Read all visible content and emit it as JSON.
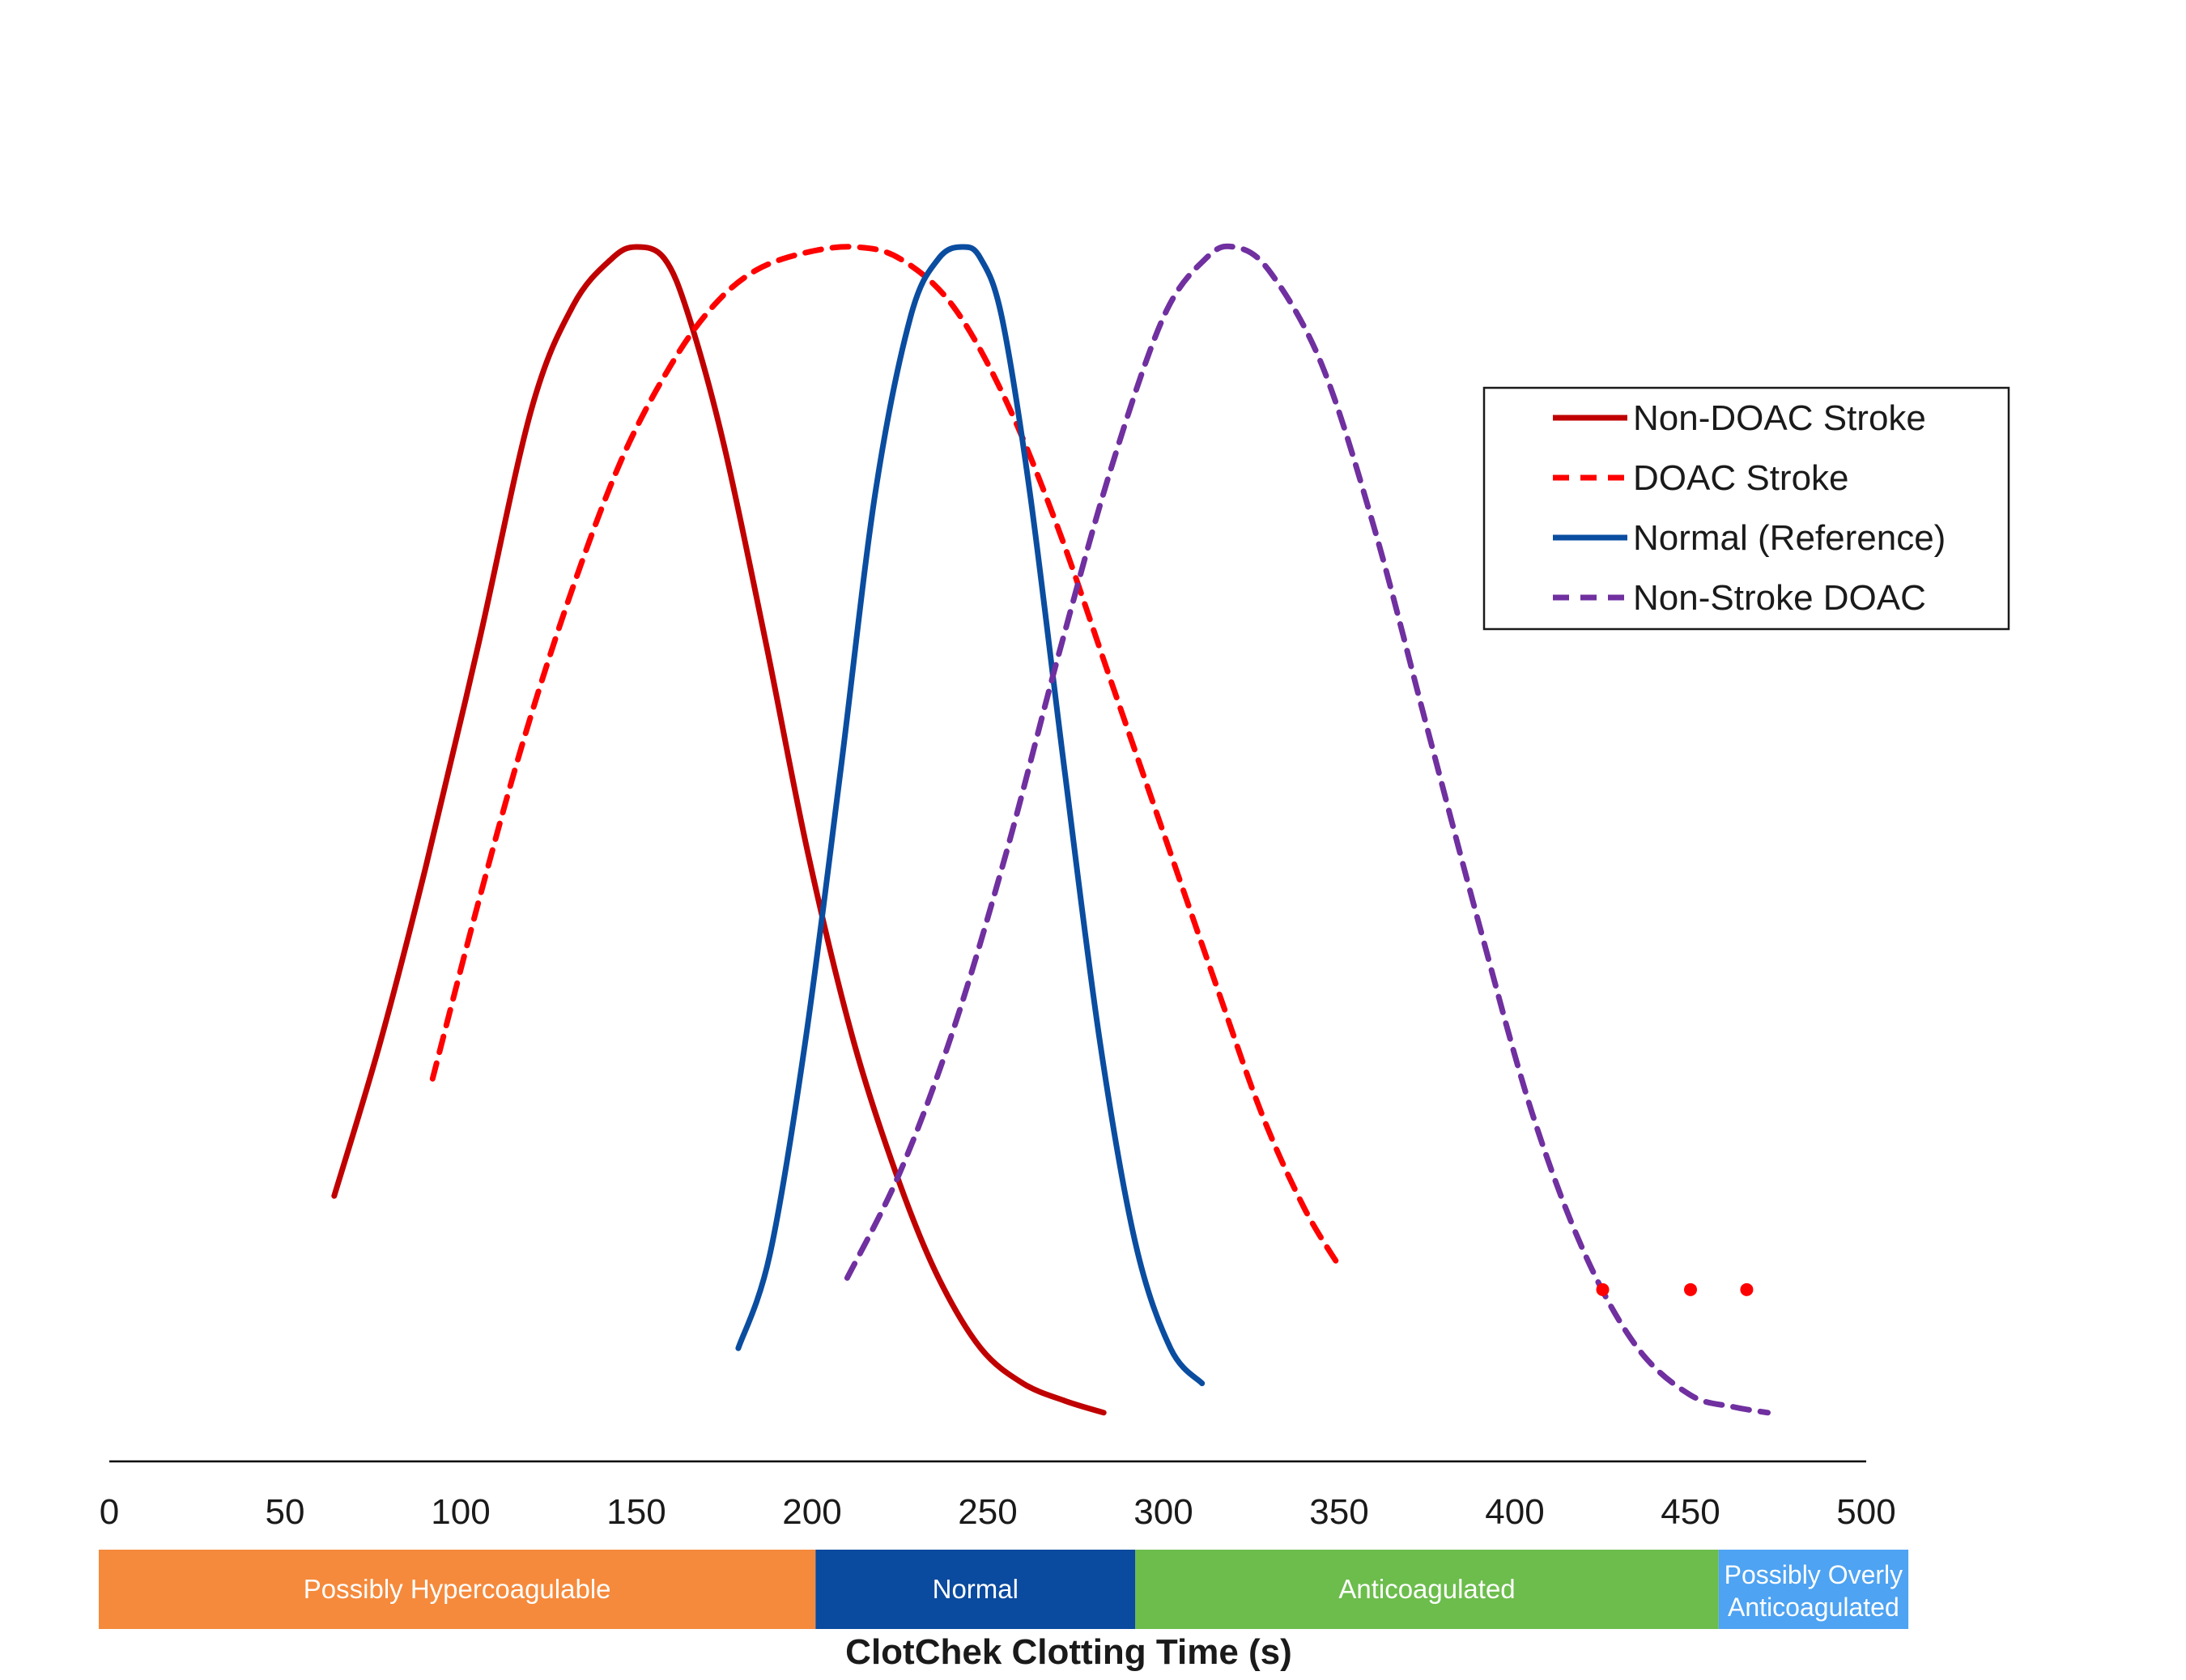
{
  "chart_data": {
    "type": "line",
    "title": "",
    "xlabel": "ClotChek Clotting Time (s)",
    "ylabel": "",
    "xlim": [
      0,
      500
    ],
    "ylim": [
      0,
      1
    ],
    "grid": false,
    "legend_position": "top-right",
    "ticks": [
      "0",
      "50",
      "100",
      "150",
      "200",
      "250",
      "300",
      "350",
      "400",
      "450",
      "500"
    ],
    "tick_values": [
      0,
      50,
      100,
      150,
      200,
      250,
      300,
      350,
      400,
      450,
      500
    ],
    "series": [
      {
        "name": "Non-DOAC Stroke",
        "color": "#c00000",
        "dash": "solid",
        "x": [
          64,
          77,
          90,
          105,
          120,
          132,
          143,
          150,
          158,
          165,
          175,
          187,
          199,
          212,
          225,
          236,
          248,
          260,
          272,
          283
        ],
        "y": [
          0.19,
          0.32,
          0.47,
          0.66,
          0.86,
          0.95,
          0.99,
          1.0,
          0.99,
          0.94,
          0.83,
          0.66,
          0.48,
          0.32,
          0.2,
          0.12,
          0.06,
          0.03,
          0.015,
          0.005
        ]
      },
      {
        "name": "DOAC Stroke",
        "color": "#ff0000",
        "dash": "dashed",
        "x": [
          92,
          105,
          118,
          132,
          146,
          160,
          172,
          184,
          198,
          212,
          225,
          240,
          255,
          270,
          285,
          300,
          315,
          328,
          340,
          350
        ],
        "y": [
          0.29,
          0.44,
          0.58,
          0.71,
          0.82,
          0.9,
          0.95,
          0.98,
          0.995,
          1.0,
          0.99,
          0.95,
          0.87,
          0.76,
          0.63,
          0.5,
          0.37,
          0.26,
          0.18,
          0.13
        ]
      },
      {
        "name": "Normal (Reference)",
        "color": "#0a4da0",
        "dash": "solid",
        "x": [
          179,
          188,
          198,
          208,
          218,
          228,
          236,
          243,
          248,
          254,
          262,
          272,
          282,
          292,
          302,
          311
        ],
        "y": [
          0.06,
          0.14,
          0.32,
          0.55,
          0.79,
          0.94,
          0.99,
          1.0,
          0.99,
          0.94,
          0.79,
          0.55,
          0.32,
          0.15,
          0.06,
          0.03
        ]
      },
      {
        "name": "Non-Stroke DOAC",
        "color": "#7030a0",
        "dash": "dashed",
        "x": [
          210,
          225,
          240,
          255,
          270,
          285,
          300,
          312,
          320,
          330,
          345,
          360,
          375,
          390,
          405,
          420,
          435,
          450,
          462,
          472
        ],
        "y": [
          0.12,
          0.21,
          0.33,
          0.48,
          0.65,
          0.81,
          0.94,
          0.99,
          1.0,
          0.98,
          0.9,
          0.76,
          0.59,
          0.42,
          0.26,
          0.14,
          0.06,
          0.02,
          0.01,
          0.005
        ]
      }
    ],
    "extra_points": {
      "color": "#ff0000",
      "x": [
        425,
        450,
        466
      ],
      "y": [
        0.11,
        0.11,
        0.11
      ]
    },
    "categories_bar": [
      {
        "label": "Possibly Hypercoagulable",
        "from": -3,
        "to": 201,
        "color": "#f58a3c"
      },
      {
        "label": "Normal",
        "from": 201,
        "to": 292,
        "color": "#0a4a9f"
      },
      {
        "label": "Anticoagulated",
        "from": 292,
        "to": 458,
        "color": "#6cbd4c"
      },
      {
        "label": "Possibly Overly Anticoagulated",
        "from": 458,
        "to": 512,
        "color": "#4ea3f2"
      }
    ]
  }
}
